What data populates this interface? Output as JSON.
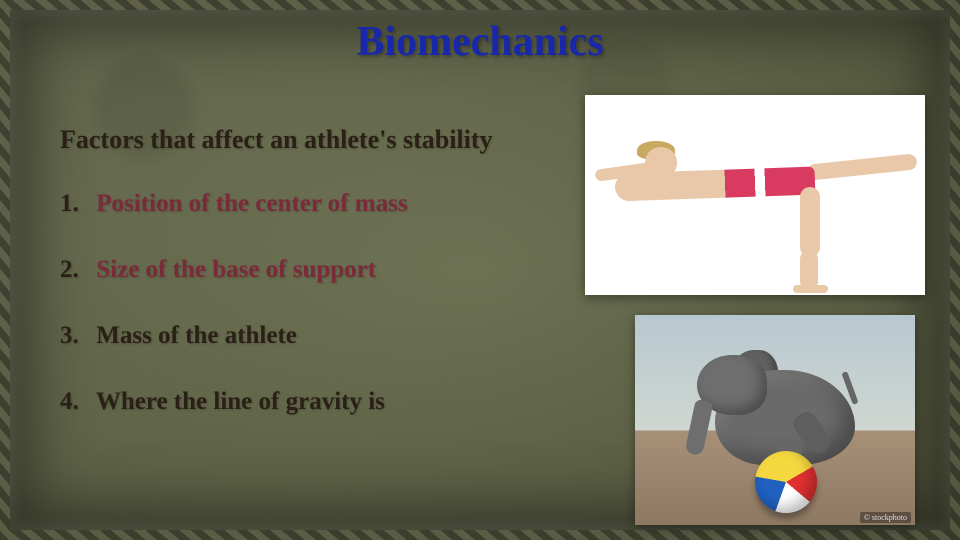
{
  "title": "Biomechanics",
  "subtitle": "Factors that affect an athlete's stability",
  "items": [
    {
      "num": "1.",
      "text": "Position of the center of mass",
      "color": "red"
    },
    {
      "num": "2.",
      "text": "Size of the base of support",
      "color": "red"
    },
    {
      "num": "3.",
      "text": "Mass of the athlete",
      "color": "dark"
    },
    {
      "num": "4.",
      "text": "Where the line of gravity is",
      "color": "dark"
    }
  ],
  "image1_alt": "Woman performing a standing balance yoga pose (warrior III style) in pink shorts",
  "image2_alt": "Elephant balancing on a beach ball on a sandy beach",
  "image2_credit": "© stockphoto",
  "colors": {
    "title": "#1828a8",
    "accent_red": "#7b2a3a",
    "text_dark": "#2a2016",
    "bg_base": "#6b7050"
  }
}
